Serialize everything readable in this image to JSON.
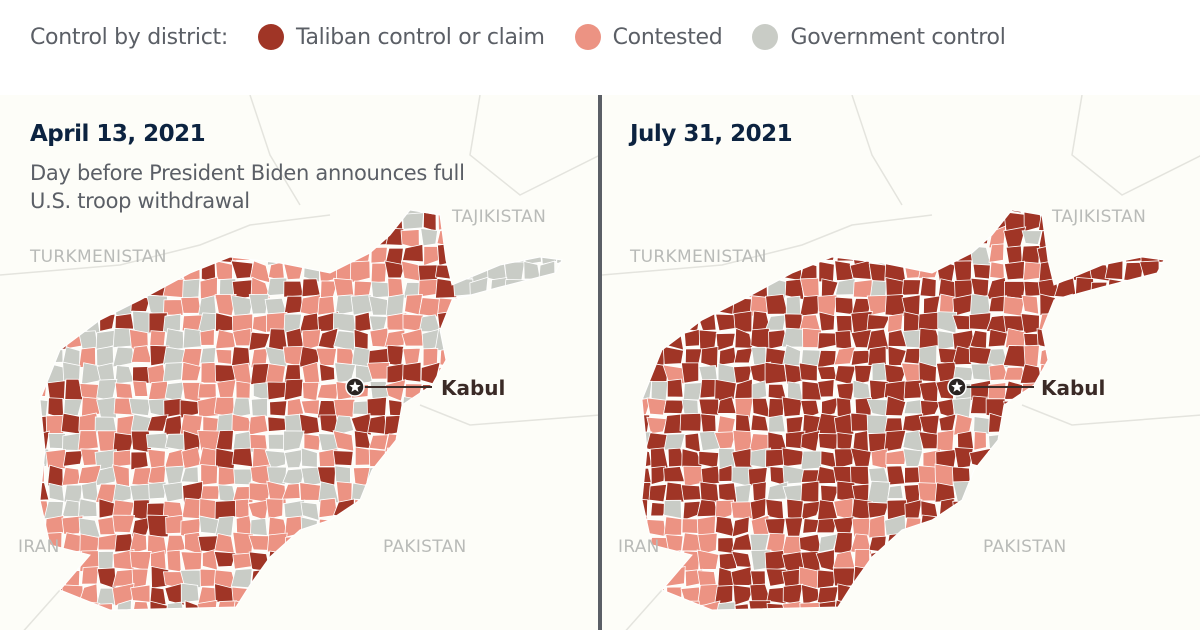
{
  "legend": {
    "title": "Control by district:",
    "items": [
      {
        "label": "Taliban control or claim",
        "color": "#a03526"
      },
      {
        "label": "Contested",
        "color": "#ec9383"
      },
      {
        "label": "Government control",
        "color": "#c9ccc6"
      }
    ]
  },
  "panels": [
    {
      "title": "April 13, 2021",
      "subtitle": "Day before President Biden announces full U.S. troop withdrawal"
    },
    {
      "title": "July 31, 2021",
      "subtitle": ""
    }
  ],
  "countries": {
    "tajikistan": "TAJIKISTAN",
    "turkmenistan": "TURKMENISTAN",
    "iran": "IRAN",
    "pakistan": "PAKISTAN"
  },
  "capital": {
    "label": "Kabul",
    "icon": "star-in-circle-icon"
  },
  "colors": {
    "background": "#fdfdf8",
    "border_lines": "#e4e4de",
    "divider": "#5b5f66"
  }
}
